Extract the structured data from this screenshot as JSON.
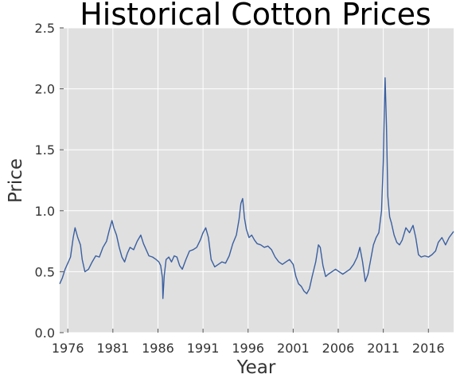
{
  "chart_data": {
    "type": "line",
    "title": "Historical Cotton Prices",
    "xlabel": "Year",
    "ylabel": "Price",
    "xlim": [
      1975.1,
      2018.8
    ],
    "ylim": [
      0.0,
      2.5
    ],
    "xticks": [
      1976,
      1981,
      1986,
      1991,
      1996,
      2001,
      2006,
      2011,
      2016
    ],
    "xtick_labels": [
      "1976",
      "1981",
      "1986",
      "1991",
      "1996",
      "2001",
      "2006",
      "2011",
      "2016"
    ],
    "yticks": [
      0.0,
      0.5,
      1.0,
      1.5,
      2.0,
      2.5
    ],
    "ytick_labels": [
      "0.0",
      "0.5",
      "1.0",
      "1.5",
      "2.0",
      "2.5"
    ],
    "grid": true,
    "background_color": "#e0e0e0",
    "grid_color": "#ffffff",
    "series": [
      {
        "color": "#3a5fa0",
        "x": [
          1975.1,
          1975.4,
          1975.7,
          1976.0,
          1976.3,
          1976.6,
          1976.8,
          1977.1,
          1977.4,
          1977.6,
          1977.9,
          1978.3,
          1978.7,
          1979.1,
          1979.5,
          1979.9,
          1980.3,
          1980.6,
          1980.9,
          1981.1,
          1981.4,
          1981.7,
          1982.0,
          1982.3,
          1982.6,
          1982.9,
          1983.3,
          1983.7,
          1984.1,
          1984.4,
          1984.7,
          1985.0,
          1985.4,
          1985.8,
          1986.1,
          1986.3,
          1986.5,
          1986.55,
          1986.7,
          1986.9,
          1987.2,
          1987.5,
          1987.8,
          1988.1,
          1988.4,
          1988.7,
          1989.1,
          1989.5,
          1989.9,
          1990.3,
          1990.7,
          1991.0,
          1991.3,
          1991.6,
          1991.9,
          1992.3,
          1992.7,
          1993.1,
          1993.5,
          1993.9,
          1994.3,
          1994.7,
          1995.0,
          1995.2,
          1995.4,
          1995.6,
          1995.8,
          1996.1,
          1996.4,
          1996.7,
          1997.0,
          1997.4,
          1997.8,
          1998.2,
          1998.6,
          1999.0,
          1999.4,
          1999.8,
          2000.2,
          2000.6,
          2001.0,
          2001.3,
          2001.6,
          2001.9,
          2002.2,
          2002.5,
          2002.8,
          2003.1,
          2003.5,
          2003.8,
          2004.0,
          2004.3,
          2004.6,
          2004.9,
          2005.3,
          2005.7,
          2006.1,
          2006.5,
          2006.9,
          2007.3,
          2007.7,
          2008.1,
          2008.4,
          2008.7,
          2009.0,
          2009.3,
          2009.6,
          2009.9,
          2010.2,
          2010.5,
          2010.8,
          2011.0,
          2011.1,
          2011.2,
          2011.35,
          2011.5,
          2011.7,
          2011.9,
          2012.2,
          2012.5,
          2012.8,
          2013.1,
          2013.5,
          2013.9,
          2014.3,
          2014.6,
          2014.9,
          2015.2,
          2015.6,
          2016.0,
          2016.4,
          2016.8,
          2017.1,
          2017.5,
          2017.9,
          2018.3,
          2018.8
        ],
        "y": [
          0.4,
          0.45,
          0.52,
          0.57,
          0.62,
          0.78,
          0.86,
          0.78,
          0.72,
          0.6,
          0.5,
          0.52,
          0.58,
          0.63,
          0.62,
          0.7,
          0.75,
          0.84,
          0.92,
          0.86,
          0.8,
          0.7,
          0.62,
          0.58,
          0.65,
          0.7,
          0.68,
          0.75,
          0.8,
          0.73,
          0.68,
          0.63,
          0.62,
          0.6,
          0.58,
          0.55,
          0.45,
          0.28,
          0.47,
          0.6,
          0.62,
          0.58,
          0.63,
          0.62,
          0.55,
          0.52,
          0.6,
          0.67,
          0.68,
          0.7,
          0.76,
          0.82,
          0.86,
          0.78,
          0.6,
          0.54,
          0.56,
          0.58,
          0.57,
          0.63,
          0.73,
          0.8,
          0.93,
          1.06,
          1.1,
          0.94,
          0.85,
          0.78,
          0.8,
          0.76,
          0.73,
          0.72,
          0.7,
          0.71,
          0.68,
          0.62,
          0.58,
          0.56,
          0.58,
          0.6,
          0.56,
          0.46,
          0.4,
          0.38,
          0.34,
          0.32,
          0.36,
          0.46,
          0.58,
          0.72,
          0.7,
          0.55,
          0.46,
          0.48,
          0.5,
          0.52,
          0.5,
          0.48,
          0.5,
          0.52,
          0.56,
          0.62,
          0.7,
          0.58,
          0.42,
          0.48,
          0.6,
          0.72,
          0.78,
          0.82,
          1.0,
          1.4,
          1.8,
          2.09,
          1.7,
          1.12,
          0.95,
          0.9,
          0.8,
          0.74,
          0.72,
          0.76,
          0.86,
          0.82,
          0.88,
          0.78,
          0.64,
          0.62,
          0.63,
          0.62,
          0.64,
          0.67,
          0.74,
          0.78,
          0.72,
          0.78,
          0.83
        ]
      }
    ]
  }
}
